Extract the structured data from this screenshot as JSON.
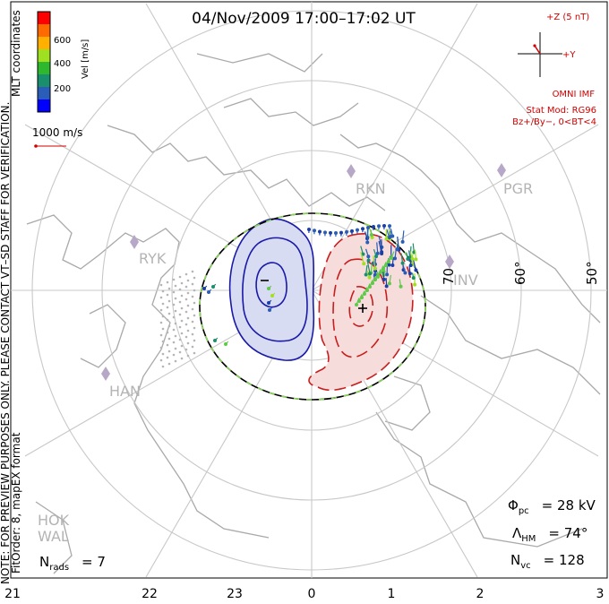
{
  "title": "04/Nov/2009 17:00–17:02 UT",
  "colorbar": {
    "unit": "Vel [m/s]",
    "ticks": [
      "600",
      "400",
      "200"
    ],
    "colors": [
      "#ff0000",
      "#ff6a00",
      "#ffb000",
      "#9fe020",
      "#2eb82e",
      "#1a8f6e",
      "#2a5db8",
      "#0000ff"
    ]
  },
  "coord_label": "MLT coordinates",
  "verification_note": "NOTE: FOR PREVIEW PURPOSES ONLY. PLEASE CONTACT VT–SD STAFF FOR VERIFICATION.",
  "fit_order": "FitOrder: 8, mapEX format",
  "velocity_scale": "1000 m/s",
  "imf": {
    "z_label": "+Z (5 nT)",
    "y_label": "+Y",
    "source": "OMNI IMF",
    "model": "Stat Mod: RG96",
    "condition": "Bz+/By−, 0<BT<4"
  },
  "stations": [
    "RKN",
    "PGR",
    "RYK",
    "INV",
    "HAN",
    "HOK",
    "WAL"
  ],
  "lat_labels": [
    "70",
    "60°",
    "50°"
  ],
  "stats": {
    "phi_pc_sym": "Φ",
    "phi_pc_sub": "pc",
    "phi_pc_val": "= 28 kV",
    "lambda_sym": "Λ",
    "lambda_sub": "HM",
    "lambda_val": "= 74°",
    "nvc_sym": "N",
    "nvc_sub": "vc",
    "nvc_val": "= 128",
    "nrads_sym": "N",
    "nrads_sub": "rads",
    "nrads_val": "= 7"
  },
  "mlt_axis": [
    "21",
    "22",
    "23",
    "0",
    "1",
    "2",
    "3"
  ],
  "chart_data": {
    "type": "map",
    "projection": "polar MLT",
    "potential_cells": [
      {
        "sign": "negative",
        "color": "#1a1aa8",
        "fill": "#d8dcf2"
      },
      {
        "sign": "positive",
        "color": "#c81e1e",
        "fill": "#f7dcdc"
      }
    ],
    "cross_polar_cap_potential_kV": 28,
    "heppner_maynard_boundary_deg": 74,
    "n_vectors": 128,
    "n_radars": 7
  }
}
